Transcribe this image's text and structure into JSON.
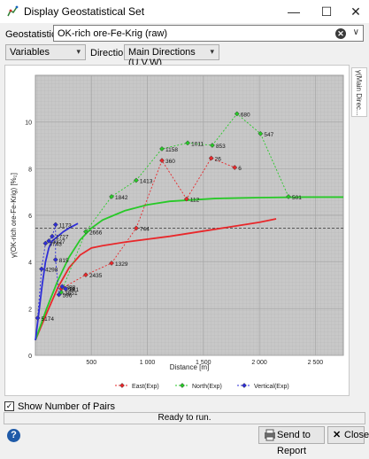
{
  "window": {
    "title": "Display Geostatistical Set"
  },
  "toolbar": {
    "set_label": "Geostatistical Set",
    "set_value": "OK-rich ore-Fe-Krig (raw)",
    "variables_value": "Variables",
    "directions_label": "Direction(s)",
    "directions_value": "Main Directions (U,V,W)"
  },
  "side_tab": {
    "label": "γ(Main Direc..."
  },
  "options": {
    "show_pairs_label": "Show Number of Pairs",
    "show_pairs_checked": true
  },
  "status": {
    "text": "Ready to run."
  },
  "buttons": {
    "send_label": "Send to Report",
    "close_label": "Close"
  },
  "colors": {
    "east": "#e8282b",
    "north": "#27c927",
    "vertical": "#2e2ed8"
  },
  "chart_data": {
    "type": "line",
    "title": "",
    "xlabel": "Distance [m]",
    "ylabel": "γ(OK-rich ore-Fe-Krig) [%₂]",
    "xlim": [
      0,
      2750
    ],
    "ylim": [
      0,
      12
    ],
    "x_ticks": [
      "500",
      "1 000",
      "1 500",
      "2 000",
      "2 500"
    ],
    "y_ticks": [
      "0",
      "2",
      "4",
      "6",
      "8",
      "10"
    ],
    "sill_line": 5.45,
    "legend": {
      "position": "bottom"
    },
    "series": [
      {
        "name": "East(Exp)",
        "key": "east",
        "points": [
          {
            "x": 230,
            "y": 2.85,
            "label": "398"
          },
          {
            "x": 450,
            "y": 3.45,
            "label": "2435"
          },
          {
            "x": 680,
            "y": 3.95,
            "label": "1329"
          },
          {
            "x": 900,
            "y": 5.45,
            "label": "744"
          },
          {
            "x": 1130,
            "y": 8.35,
            "label": "360"
          },
          {
            "x": 1350,
            "y": 6.7,
            "label": "112"
          },
          {
            "x": 1570,
            "y": 8.45,
            "label": "26"
          },
          {
            "x": 1780,
            "y": 8.05,
            "label": "6"
          }
        ],
        "model": [
          [
            0,
            0.65
          ],
          [
            100,
            1.8
          ],
          [
            200,
            2.9
          ],
          [
            300,
            3.75
          ],
          [
            400,
            4.3
          ],
          [
            500,
            4.6
          ],
          [
            600,
            4.7
          ],
          [
            800,
            4.85
          ],
          [
            1200,
            5.1
          ],
          [
            1600,
            5.4
          ],
          [
            2000,
            5.7
          ],
          [
            2150,
            5.85
          ]
        ]
      },
      {
        "name": "North(Exp)",
        "key": "north",
        "points": [
          {
            "x": 230,
            "y": 2.7,
            "label": "3651"
          },
          {
            "x": 450,
            "y": 5.3,
            "label": "2666"
          },
          {
            "x": 680,
            "y": 6.8,
            "label": "1842"
          },
          {
            "x": 900,
            "y": 7.5,
            "label": "1413"
          },
          {
            "x": 1130,
            "y": 8.85,
            "label": "1158"
          },
          {
            "x": 1360,
            "y": 9.1,
            "label": "1011"
          },
          {
            "x": 1580,
            "y": 9.0,
            "label": "853"
          },
          {
            "x": 1800,
            "y": 10.35,
            "label": "680"
          },
          {
            "x": 2010,
            "y": 9.5,
            "label": "547"
          },
          {
            "x": 2260,
            "y": 6.8,
            "label": "501"
          }
        ],
        "model": [
          [
            0,
            0.65
          ],
          [
            100,
            2.0
          ],
          [
            200,
            3.2
          ],
          [
            300,
            4.2
          ],
          [
            400,
            4.95
          ],
          [
            500,
            5.45
          ],
          [
            600,
            5.8
          ],
          [
            800,
            6.2
          ],
          [
            1000,
            6.45
          ],
          [
            1200,
            6.6
          ],
          [
            1600,
            6.72
          ],
          [
            2000,
            6.76
          ],
          [
            2400,
            6.78
          ],
          [
            2750,
            6.78
          ]
        ]
      },
      {
        "name": "Vertical(Exp)",
        "key": "vertical",
        "points": [
          {
            "x": 20,
            "y": 1.6,
            "label": "5174"
          },
          {
            "x": 55,
            "y": 3.7,
            "label": "4298"
          },
          {
            "x": 90,
            "y": 4.8,
            "label": "3743"
          },
          {
            "x": 120,
            "y": 4.9,
            "label": "3327"
          },
          {
            "x": 150,
            "y": 5.1,
            "label": "1727"
          },
          {
            "x": 180,
            "y": 5.6,
            "label": "1173"
          },
          {
            "x": 180,
            "y": 4.1,
            "label": "815"
          },
          {
            "x": 210,
            "y": 2.6,
            "label": "596"
          },
          {
            "x": 240,
            "y": 2.95,
            "label": "388"
          },
          {
            "x": 270,
            "y": 2.85,
            "label": "281"
          }
        ],
        "model": [
          [
            0,
            0.65
          ],
          [
            30,
            1.8
          ],
          [
            60,
            3.0
          ],
          [
            90,
            4.0
          ],
          [
            120,
            4.6
          ],
          [
            150,
            4.9
          ],
          [
            200,
            5.1
          ],
          [
            250,
            5.3
          ],
          [
            300,
            5.45
          ],
          [
            380,
            5.65
          ]
        ]
      }
    ]
  }
}
